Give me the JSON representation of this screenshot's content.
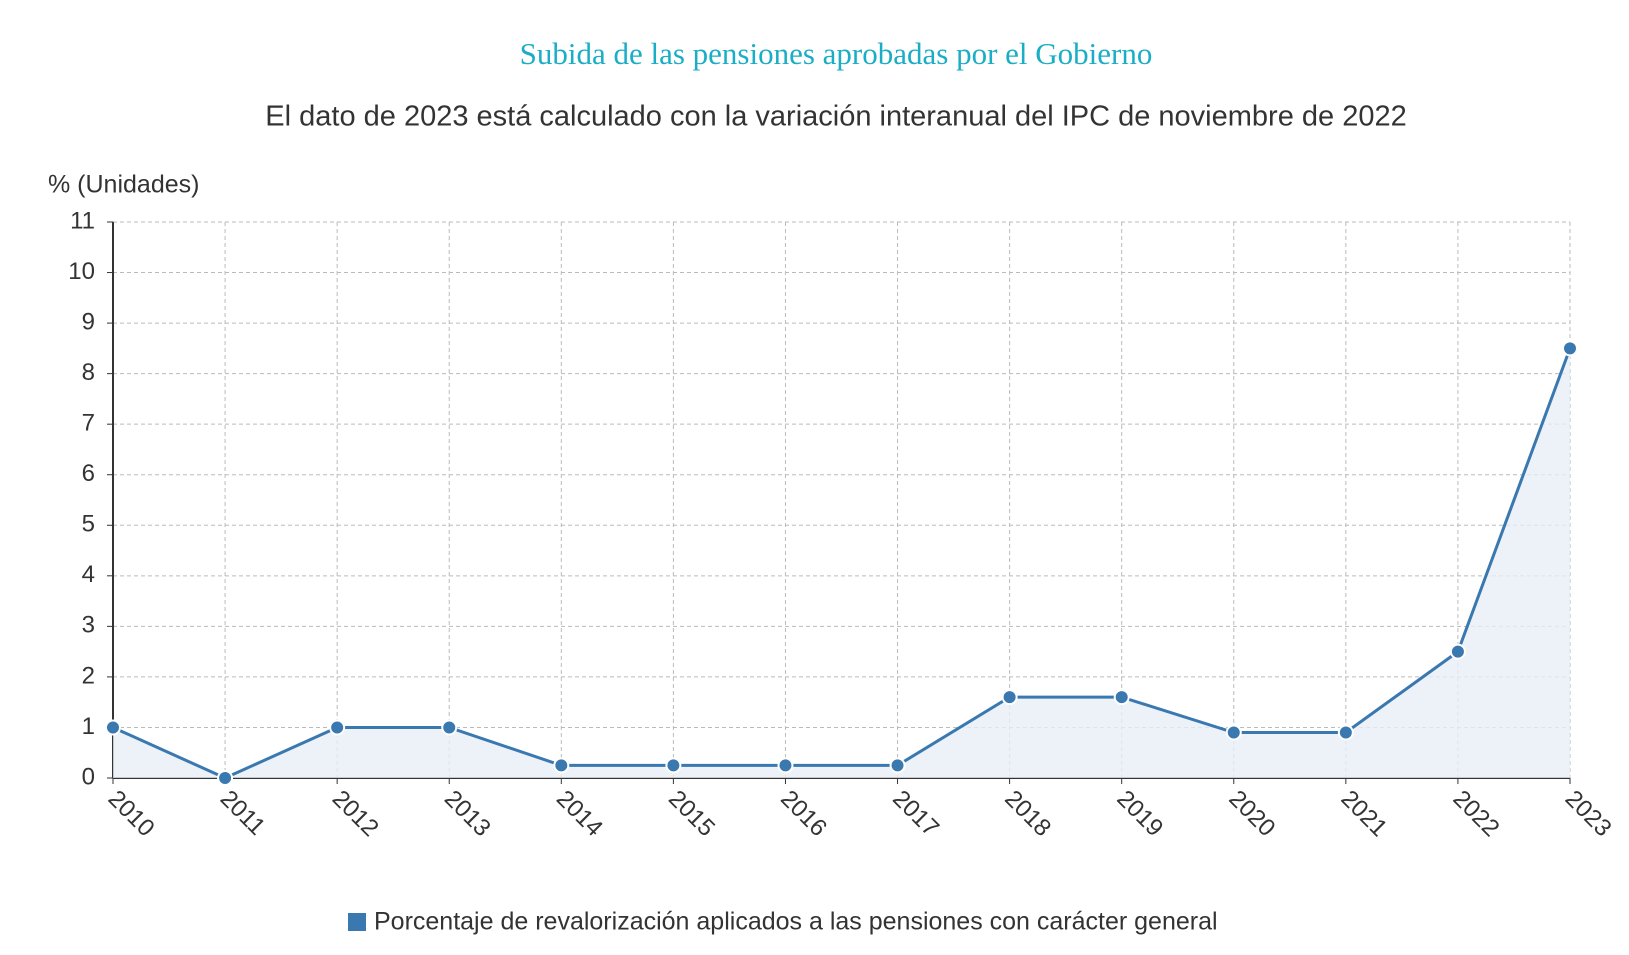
{
  "chart_data": {
    "type": "line",
    "title": "Subida de las pensiones aprobadas por el Gobierno",
    "subtitle": "El dato de 2023 está calculado con la variación interanual del IPC de noviembre de 2022",
    "y_label": "% (Unidades)",
    "categories": [
      "2010",
      "2011",
      "2012",
      "2013",
      "2014",
      "2015",
      "2016",
      "2017",
      "2018",
      "2019",
      "2020",
      "2021",
      "2022",
      "2023"
    ],
    "series": [
      {
        "name": "Porcentaje de revalorización aplicados a las pensiones con carácter general",
        "color": "#3a78b0",
        "values": [
          1,
          0,
          1,
          1,
          0.25,
          0.25,
          0.25,
          0.25,
          1.6,
          1.6,
          0.9,
          0.9,
          2.5,
          8.5
        ]
      }
    ],
    "area": true,
    "ylim": [
      0,
      11
    ],
    "yticks": [
      0,
      1,
      2,
      3,
      4,
      5,
      6,
      7,
      8,
      9,
      10,
      11
    ],
    "grid": true
  }
}
